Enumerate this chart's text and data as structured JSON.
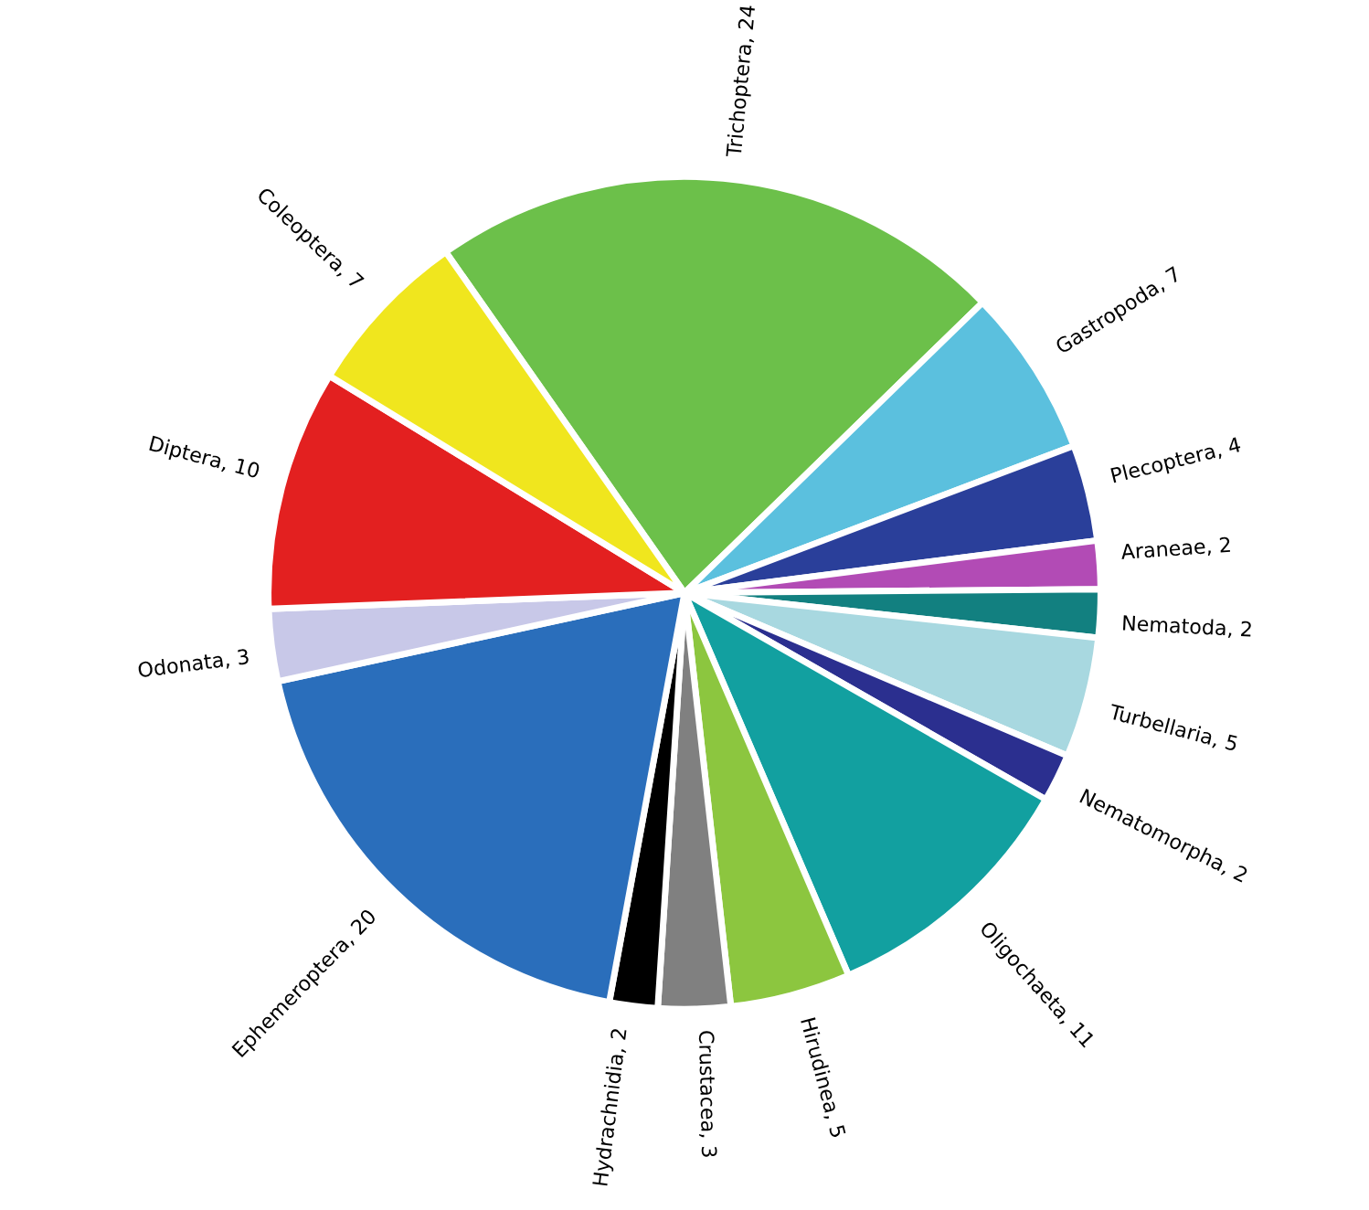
{
  "chart_data": {
    "type": "pie",
    "categories": [
      "Trichoptera, 24",
      "Gastropoda, 7",
      "Plecoptera, 4",
      "Araneae, 2",
      "Nematoda, 2",
      "Turbellaria, 5",
      "Nematomorpha, 2",
      "Oligochaeta, 11",
      "Hirudinea, 5",
      "Crustacea, 3",
      "Hydrachnidia, 2",
      "Ephemeroptera, 20",
      "Odonata, 3",
      "Diptera, 10",
      "Coleoptera, 7"
    ],
    "values": [
      24,
      7,
      4,
      2,
      2,
      5,
      2,
      11,
      5,
      3,
      2,
      20,
      3,
      10,
      7
    ],
    "colors": [
      "#6cc04a",
      "#5bc0de",
      "#2a3f9a",
      "#b24bb5",
      "#128080",
      "#a8d8e0",
      "#2b2f8f",
      "#12a0a0",
      "#8cc63f",
      "#808080",
      "#000000",
      "#2a6ebb",
      "#c8c8e8",
      "#e32020",
      "#f0e61e"
    ],
    "legend": false
  }
}
